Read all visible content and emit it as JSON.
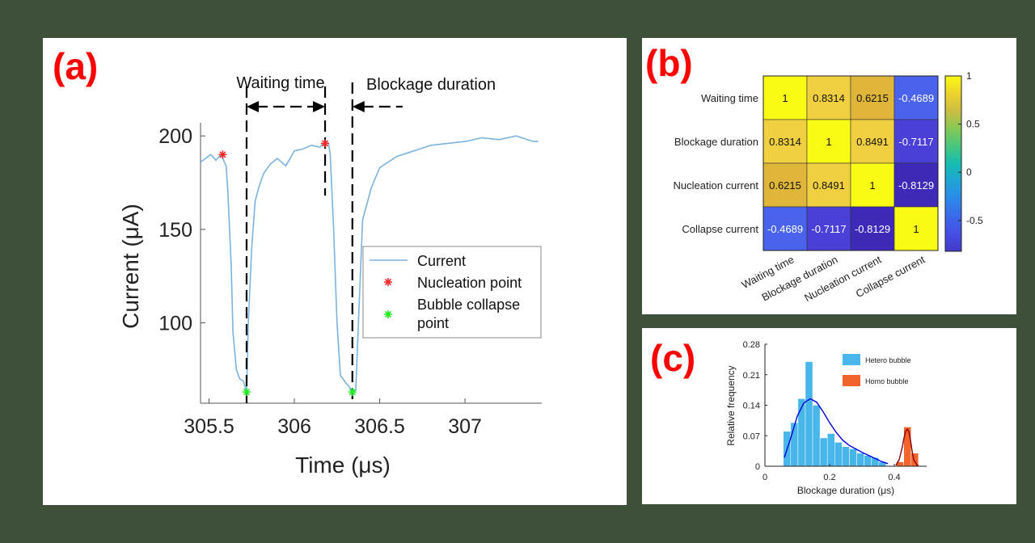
{
  "panels": {
    "a": "(a)",
    "b": "(b)",
    "c": "(c)"
  },
  "chart_data": [
    {
      "panel": "(a)",
      "type": "line",
      "xlabel": "Time (μs)",
      "ylabel": "Current (μA)",
      "xlim": [
        305.45,
        307.45
      ],
      "ylim": [
        57,
        207
      ],
      "xticks": [
        305.5,
        306,
        306.5,
        307
      ],
      "xtick_labels": [
        "305.5",
        "306",
        "306.5",
        "307"
      ],
      "yticks": [
        100,
        150,
        200
      ],
      "ytick_labels": [
        "100",
        "150",
        "200"
      ],
      "series": [
        {
          "name": "Current",
          "color": "#7ab3dd",
          "x": [
            305.45,
            305.48,
            305.51,
            305.54,
            305.57,
            305.6,
            305.61,
            305.63,
            305.64,
            305.66,
            305.68,
            305.7,
            305.72,
            305.73,
            305.75,
            305.77,
            305.79,
            305.82,
            305.86,
            305.9,
            305.95,
            306.0,
            306.05,
            306.1,
            306.15,
            306.18,
            306.2,
            306.21,
            306.23,
            306.25,
            306.27,
            306.3,
            306.32,
            306.34,
            306.36,
            306.38,
            306.4,
            306.45,
            306.5,
            306.6,
            306.7,
            306.8,
            306.9,
            307.0,
            307.1,
            307.2,
            307.3,
            307.4,
            307.43
          ],
          "y": [
            186,
            188,
            190,
            187,
            190,
            184,
            170,
            130,
            95,
            75,
            70,
            69,
            63,
            100,
            140,
            165,
            172,
            180,
            185,
            188,
            184,
            192,
            193,
            195,
            194,
            197,
            196,
            190,
            150,
            100,
            72,
            68,
            66,
            63,
            64,
            110,
            155,
            172,
            183,
            189,
            192,
            195,
            196,
            197,
            199,
            198,
            200,
            197,
            197
          ]
        },
        {
          "name": "Nucleation point",
          "color": "#ff2a2a",
          "marker": "*",
          "x": [
            305.58,
            306.18
          ],
          "y": [
            190,
            196
          ]
        },
        {
          "name": "Bubble collapse point",
          "color": "#22ee22",
          "marker": "*",
          "x": [
            305.72,
            306.34
          ],
          "y": [
            63,
            63
          ]
        }
      ],
      "annotations": [
        "Waiting time",
        "Blockage duration"
      ],
      "legend": {
        "position": "right",
        "labels": [
          "Current",
          "Nucleation point",
          "Bubble collapse point"
        ]
      }
    },
    {
      "panel": "(b)",
      "type": "heatmap",
      "categories": [
        "Waiting time",
        "Blockage duration",
        "Nucleation current",
        "Collapse current"
      ],
      "values": [
        [
          1,
          0.8314,
          0.6215,
          -0.4689
        ],
        [
          0.8314,
          1,
          0.8491,
          -0.7117
        ],
        [
          0.6215,
          0.8491,
          1,
          -0.8129
        ],
        [
          -0.4689,
          -0.7117,
          -0.8129,
          1
        ]
      ],
      "cell_labels": [
        [
          "1",
          "0.8314",
          "0.6215",
          "-0.4689"
        ],
        [
          "0.8314",
          "1",
          "0.8491",
          "-0.7117"
        ],
        [
          "0.6215",
          "0.8491",
          "1",
          "-0.8129"
        ],
        [
          "-0.4689",
          "-0.7117",
          "-0.8129",
          "1"
        ]
      ],
      "colorbar": {
        "ticks": [
          1,
          0.5,
          0,
          -0.5
        ],
        "tick_labels": [
          "1",
          "0.5",
          "0",
          "-0.5"
        ],
        "range": [
          -0.82,
          1
        ],
        "colormap": "parula"
      }
    },
    {
      "panel": "(c)",
      "type": "bar",
      "xlabel": "Blockage duration (μs)",
      "ylabel": "Relative frequency",
      "xlim": [
        0,
        0.5
      ],
      "ylim": [
        0,
        0.28
      ],
      "xticks": [
        0,
        0.2,
        0.4
      ],
      "xtick_labels": [
        "0",
        "0.2",
        "0.4"
      ],
      "yticks": [
        0,
        0.07,
        0.14,
        0.21,
        0.28
      ],
      "ytick_labels": [
        "0",
        "0.07",
        "0.14",
        "0.21",
        "0.28"
      ],
      "bin_width": 0.0227,
      "series": [
        {
          "name": "Hetero bubble",
          "color": "#48b6eb",
          "bin_starts": [
            0.0568,
            0.0795,
            0.1022,
            0.1249,
            0.1476,
            0.1703,
            0.193,
            0.2157,
            0.2384,
            0.2611,
            0.2838,
            0.3065,
            0.3292,
            0.3519
          ],
          "values": [
            0.08,
            0.1,
            0.155,
            0.24,
            0.14,
            0.065,
            0.075,
            0.055,
            0.045,
            0.04,
            0.03,
            0.025,
            0.02,
            0.01
          ]
        },
        {
          "name": "Homo bubble",
          "color": "#f1642c",
          "bin_starts": [
            0.4065,
            0.4292,
            0.4519
          ],
          "values": [
            0.01,
            0.09,
            0.03
          ]
        }
      ],
      "fits": [
        {
          "color": "#0000dd",
          "x": [
            0.06,
            0.08,
            0.1,
            0.12,
            0.14,
            0.16,
            0.18,
            0.2,
            0.22,
            0.24,
            0.26,
            0.28,
            0.3,
            0.32,
            0.34,
            0.36,
            0.38
          ],
          "y": [
            0.02,
            0.065,
            0.115,
            0.145,
            0.155,
            0.147,
            0.125,
            0.1,
            0.078,
            0.06,
            0.048,
            0.04,
            0.032,
            0.025,
            0.018,
            0.011,
            0.006
          ]
        },
        {
          "color": "#8b0000",
          "x": [
            0.405,
            0.415,
            0.425,
            0.43,
            0.435,
            0.44,
            0.445,
            0.45,
            0.455,
            0.46,
            0.47,
            0.475
          ],
          "y": [
            0.002,
            0.015,
            0.045,
            0.065,
            0.08,
            0.085,
            0.08,
            0.06,
            0.035,
            0.015,
            0.003,
            0.001
          ]
        }
      ],
      "legend": {
        "position": "top-right",
        "labels": [
          "Hetero bubble",
          "Homo bubble"
        ]
      }
    }
  ]
}
